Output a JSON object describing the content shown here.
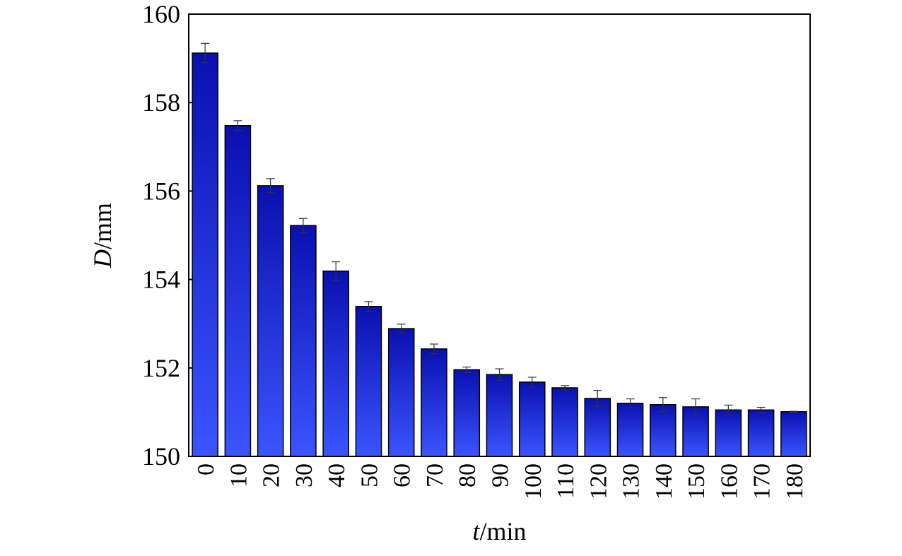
{
  "chart_data": {
    "type": "bar",
    "x_label": "t/min",
    "y_label": "D/mm",
    "categories": [
      "0",
      "10",
      "20",
      "30",
      "40",
      "50",
      "60",
      "70",
      "80",
      "90",
      "100",
      "110",
      "120",
      "130",
      "140",
      "150",
      "160",
      "170",
      "180"
    ],
    "values": [
      159.12,
      157.48,
      156.12,
      155.22,
      154.19,
      153.39,
      152.89,
      152.43,
      151.96,
      151.85,
      151.68,
      151.55,
      151.31,
      151.2,
      151.17,
      151.12,
      151.05,
      151.05,
      151.01
    ],
    "errors": [
      0.22,
      0.11,
      0.16,
      0.16,
      0.21,
      0.11,
      0.1,
      0.11,
      0.06,
      0.13,
      0.11,
      0.05,
      0.18,
      0.1,
      0.16,
      0.18,
      0.11,
      0.06,
      0.01
    ],
    "color": "#3a55ff",
    "ylim": [
      150,
      160
    ],
    "yticks": [
      150,
      152,
      154,
      156,
      158,
      160
    ],
    "grid": false
  }
}
